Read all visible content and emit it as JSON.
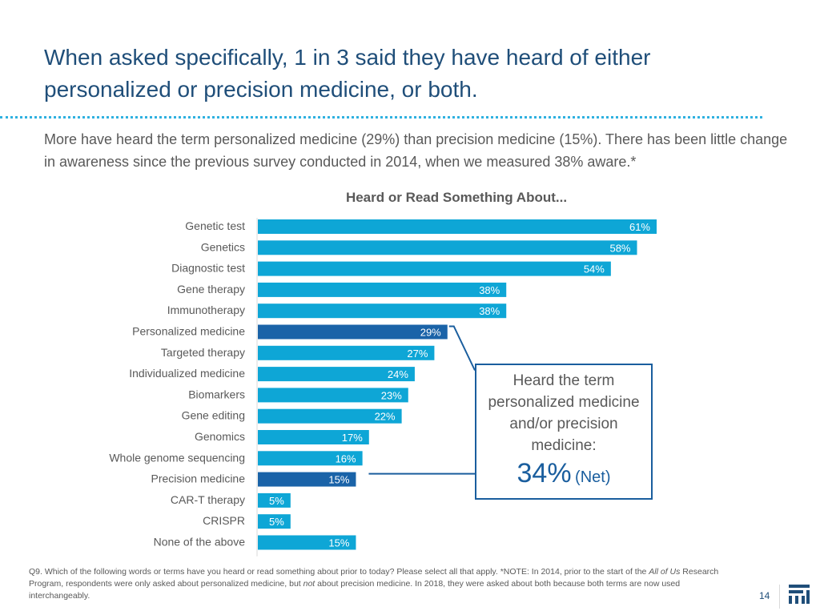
{
  "header": {
    "title": "When asked specifically, 1 in 3 said they have heard of either personalized or precision medicine, or both.",
    "subtitle": "More have heard the term personalized medicine (29%) than precision medicine (15%). There has been little change in awareness since the previous survey conducted in 2014, when we measured 38% aware.*"
  },
  "chart_data": {
    "type": "bar",
    "orientation": "horizontal",
    "title": "Heard or Read Something About...",
    "categories": [
      "Genetic test",
      "Genetics",
      "Diagnostic test",
      "Gene therapy",
      "Immunotherapy",
      "Personalized medicine",
      "Targeted therapy",
      "Individualized medicine",
      "Biomarkers",
      "Gene editing",
      "Genomics",
      "Whole genome sequencing",
      "Precision medicine",
      "CAR-T therapy",
      "CRISPR",
      "None of the above"
    ],
    "values": [
      61,
      58,
      54,
      38,
      38,
      29,
      27,
      24,
      23,
      22,
      17,
      16,
      15,
      5,
      5,
      15
    ],
    "value_labels": [
      "61%",
      "58%",
      "54%",
      "38%",
      "38%",
      "29%",
      "27%",
      "24%",
      "23%",
      "22%",
      "17%",
      "16%",
      "15%",
      "5%",
      "5%",
      "15%"
    ],
    "highlighted": [
      "Personalized medicine",
      "Precision medicine"
    ],
    "xlabel": "",
    "ylabel": "",
    "xlim": [
      0,
      61
    ],
    "colors": {
      "default": "#0EA6D6",
      "highlight": "#1A63A8"
    }
  },
  "callout": {
    "text": "Heard the term personalized medicine and/or precision medicine:",
    "net_value": "34%",
    "net_label": "(Net)",
    "color": "#1A5E9E"
  },
  "footnote": {
    "part1": "Q9. Which of the following words or terms have you heard or read something about prior to today? Please select all that apply. *NOTE: In 2014, prior to the start of the ",
    "em1": "All of Us",
    "part2": " Research Program, respondents were only asked about personalized medicine, but ",
    "em2": "not",
    "part3": " about precision medicine. In 2018, they were asked about both because both terms are now used interchangeably."
  },
  "page_number": "14",
  "colors": {
    "title": "#1F4E79",
    "accent": "#2FB1E0"
  },
  "logo_icon": "logo-icon"
}
